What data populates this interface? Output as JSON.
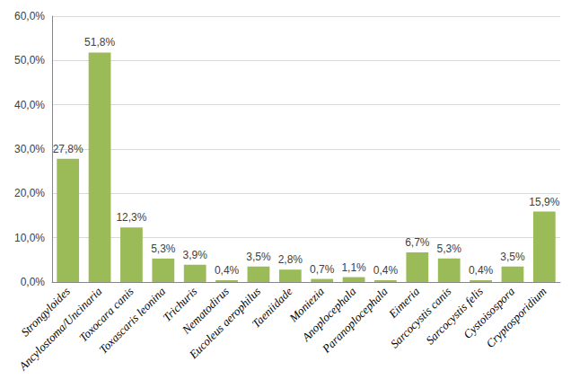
{
  "chart_data": {
    "type": "bar",
    "categories": [
      "Strongyloides",
      "Ancylostoma/Uncinaria",
      "Toxocara canis",
      "Toxascaris leonina",
      "Trichuris",
      "Nematodirus",
      "Eucoleus aerophilus",
      "Taeniidade",
      "Moniezia",
      "Anoplocephala",
      "Paranoplocephala",
      "Eimeria",
      "Sarcocystis canis",
      "Sarcocystis felis",
      "Cystoisospora",
      "Cryptosporidium"
    ],
    "values": [
      27.8,
      51.8,
      12.3,
      5.3,
      3.9,
      0.4,
      3.5,
      2.8,
      0.7,
      1.1,
      0.4,
      6.7,
      5.3,
      0.4,
      3.5,
      15.9
    ],
    "value_labels": [
      "27,8%",
      "51,8%",
      "12,3%",
      "5,3%",
      "3,9%",
      "0,4%",
      "3,5%",
      "2,8%",
      "0,7%",
      "1,1%",
      "0,4%",
      "6,7%",
      "5,3%",
      "0,4%",
      "3,5%",
      "15,9%"
    ],
    "color": "#9bbb59",
    "ylim": [
      0,
      60
    ],
    "yticks": [
      {
        "value": 0,
        "label": "0,0%"
      },
      {
        "value": 10,
        "label": "10,0%"
      },
      {
        "value": 20,
        "label": "20,0%"
      },
      {
        "value": 30,
        "label": "30,0%"
      },
      {
        "value": 40,
        "label": "40,0%"
      },
      {
        "value": 50,
        "label": "50,0%"
      },
      {
        "value": 60,
        "label": "60,0%"
      }
    ],
    "grid": true,
    "data_labels": true
  }
}
